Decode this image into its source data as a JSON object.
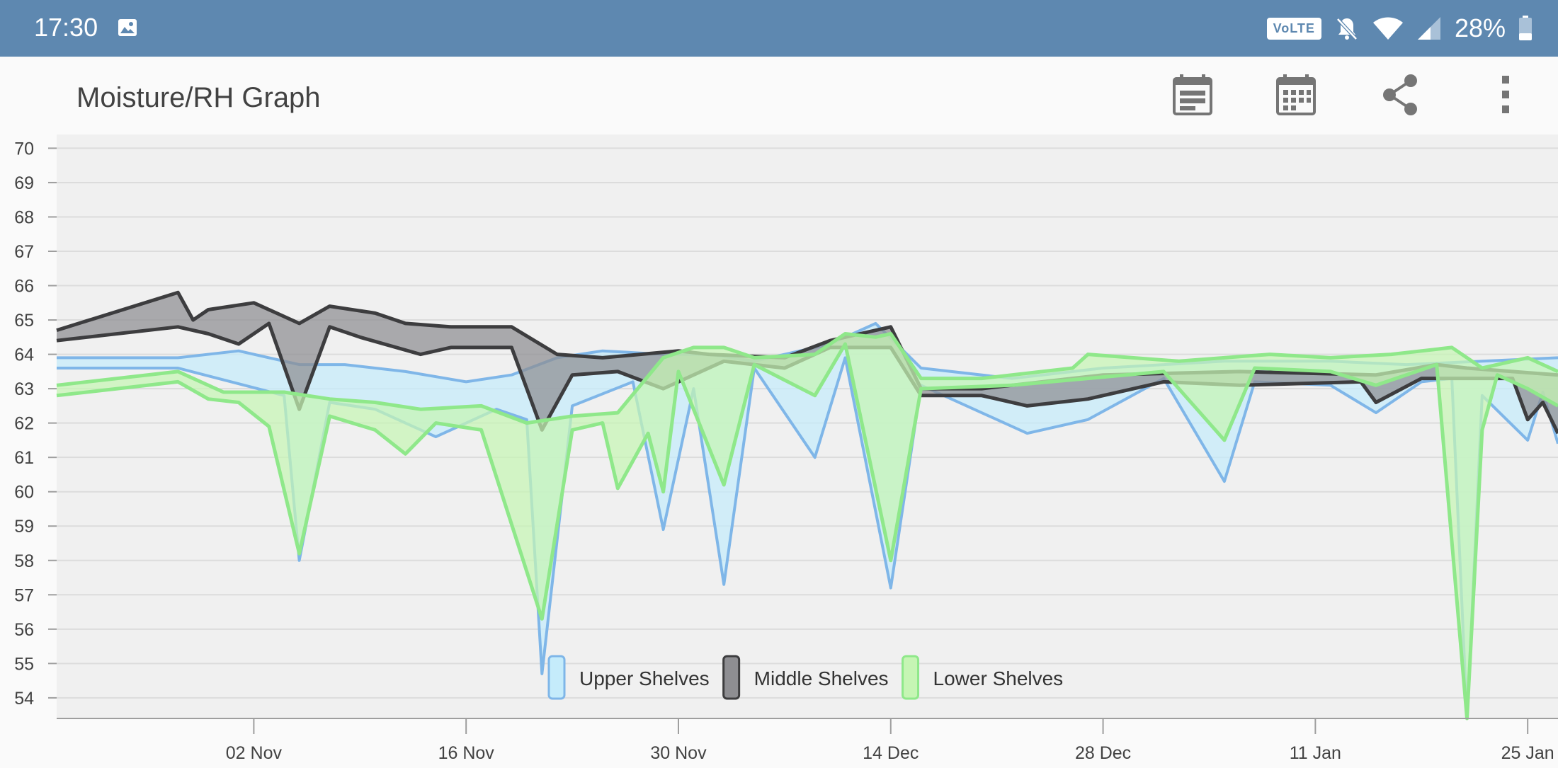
{
  "status_bar": {
    "time": "17:30",
    "volte_label": "VoLTE",
    "battery": "28%",
    "icons": [
      "image-icon",
      "volte-badge",
      "mute-bell-icon",
      "wifi-icon",
      "signal-icon",
      "battery-icon"
    ]
  },
  "app_bar": {
    "title": "Moisture/RH Graph",
    "actions": [
      "calendar-range-icon",
      "calendar-icon",
      "share-icon",
      "overflow-menu-icon"
    ]
  },
  "colors": {
    "status_bar": "#5e88b0",
    "plot_bg": "#f0f0f0",
    "upper": "#7fb6e8",
    "upper_fill": "#c5ecfb",
    "middle": "#3d3d3f",
    "middle_fill": "#8e8e92",
    "lower": "#8fe88a",
    "lower_fill": "#c6f5b4"
  },
  "chart_data": {
    "type": "area",
    "title": "",
    "xlabel": "",
    "ylabel": "",
    "ylim": [
      53.4,
      70.4
    ],
    "yticks": [
      54,
      55,
      56,
      57,
      58,
      59,
      60,
      61,
      62,
      63,
      64,
      65,
      66,
      67,
      68,
      69,
      70
    ],
    "xlim": [
      "2023-10-20",
      "2024-01-27"
    ],
    "xticks": [
      {
        "date": "2023-11-02",
        "label": "02 Nov"
      },
      {
        "date": "2023-11-16",
        "label": "16 Nov"
      },
      {
        "date": "2023-11-30",
        "label": "30 Nov"
      },
      {
        "date": "2023-12-14",
        "label": "14 Dec"
      },
      {
        "date": "2023-12-28",
        "label": "28 Dec"
      },
      {
        "date": "2024-01-11",
        "label": "11 Jan"
      },
      {
        "date": "2024-01-25",
        "label": "25 Jan"
      }
    ],
    "legend_position": "bottom-center",
    "grid": true,
    "series": [
      {
        "name": "Upper Shelves",
        "high": [
          [
            "2023-10-20",
            63.9
          ],
          [
            "2023-10-28",
            63.9
          ],
          [
            "2023-11-01",
            64.1
          ],
          [
            "2023-11-05",
            63.7
          ],
          [
            "2023-11-08",
            63.7
          ],
          [
            "2023-11-12",
            63.5
          ],
          [
            "2023-11-16",
            63.2
          ],
          [
            "2023-11-19",
            63.4
          ],
          [
            "2023-11-22",
            63.9
          ],
          [
            "2023-11-25",
            64.1
          ],
          [
            "2023-11-29",
            64.0
          ],
          [
            "2023-12-02",
            64.0
          ],
          [
            "2023-12-05",
            63.8
          ],
          [
            "2023-12-10",
            64.3
          ],
          [
            "2023-12-13",
            64.9
          ],
          [
            "2023-12-16",
            63.6
          ],
          [
            "2023-12-22",
            63.3
          ],
          [
            "2023-12-28",
            63.6
          ],
          [
            "2024-01-05",
            63.8
          ],
          [
            "2024-01-12",
            63.8
          ],
          [
            "2024-01-17",
            63.7
          ],
          [
            "2024-01-22",
            63.8
          ],
          [
            "2024-01-27",
            63.9
          ]
        ],
        "low": [
          [
            "2023-10-20",
            63.6
          ],
          [
            "2023-10-28",
            63.6
          ],
          [
            "2023-11-04",
            62.8
          ],
          [
            "2023-11-05",
            58.0
          ],
          [
            "2023-11-07",
            62.6
          ],
          [
            "2023-11-10",
            62.4
          ],
          [
            "2023-11-14",
            61.6
          ],
          [
            "2023-11-18",
            62.4
          ],
          [
            "2023-11-20",
            62.1
          ],
          [
            "2023-11-21",
            54.7
          ],
          [
            "2023-11-23",
            62.5
          ],
          [
            "2023-11-27",
            63.2
          ],
          [
            "2023-11-29",
            58.9
          ],
          [
            "2023-12-01",
            63.0
          ],
          [
            "2023-12-03",
            57.3
          ],
          [
            "2023-12-05",
            63.6
          ],
          [
            "2023-12-09",
            61.0
          ],
          [
            "2023-12-11",
            63.9
          ],
          [
            "2023-12-14",
            57.2
          ],
          [
            "2023-12-16",
            63.1
          ],
          [
            "2023-12-23",
            61.7
          ],
          [
            "2023-12-27",
            62.1
          ],
          [
            "2024-01-01",
            63.3
          ],
          [
            "2024-01-05",
            60.3
          ],
          [
            "2024-01-07",
            63.2
          ],
          [
            "2024-01-12",
            63.1
          ],
          [
            "2024-01-15",
            62.3
          ],
          [
            "2024-01-18",
            63.2
          ],
          [
            "2024-01-20",
            63.3
          ],
          [
            "2024-01-21",
            53.4
          ],
          [
            "2024-01-22",
            62.8
          ],
          [
            "2024-01-25",
            61.5
          ],
          [
            "2024-01-26",
            62.9
          ],
          [
            "2024-01-27",
            61.4
          ]
        ]
      },
      {
        "name": "Middle Shelves",
        "high": [
          [
            "2023-10-20",
            64.7
          ],
          [
            "2023-10-28",
            65.8
          ],
          [
            "2023-10-29",
            65.0
          ],
          [
            "2023-10-30",
            65.3
          ],
          [
            "2023-11-02",
            65.5
          ],
          [
            "2023-11-05",
            64.9
          ],
          [
            "2023-11-07",
            65.4
          ],
          [
            "2023-11-10",
            65.2
          ],
          [
            "2023-11-12",
            64.9
          ],
          [
            "2023-11-15",
            64.8
          ],
          [
            "2023-11-19",
            64.8
          ],
          [
            "2023-11-22",
            64.0
          ],
          [
            "2023-11-25",
            63.9
          ],
          [
            "2023-11-30",
            64.1
          ],
          [
            "2023-12-02",
            64.0
          ],
          [
            "2023-12-07",
            63.9
          ],
          [
            "2023-12-10",
            64.4
          ],
          [
            "2023-12-14",
            64.8
          ],
          [
            "2023-12-16",
            63.0
          ],
          [
            "2023-12-20",
            63.0
          ],
          [
            "2023-12-28",
            63.4
          ],
          [
            "2024-01-06",
            63.5
          ],
          [
            "2024-01-15",
            63.4
          ],
          [
            "2024-01-19",
            63.7
          ],
          [
            "2024-01-21",
            63.6
          ],
          [
            "2024-01-24",
            63.5
          ],
          [
            "2024-01-27",
            63.4
          ]
        ],
        "low": [
          [
            "2023-10-20",
            64.4
          ],
          [
            "2023-10-28",
            64.8
          ],
          [
            "2023-10-30",
            64.6
          ],
          [
            "2023-11-01",
            64.3
          ],
          [
            "2023-11-03",
            64.9
          ],
          [
            "2023-11-05",
            62.4
          ],
          [
            "2023-11-07",
            64.8
          ],
          [
            "2023-11-09",
            64.5
          ],
          [
            "2023-11-13",
            64.0
          ],
          [
            "2023-11-15",
            64.2
          ],
          [
            "2023-11-19",
            64.2
          ],
          [
            "2023-11-21",
            61.8
          ],
          [
            "2023-11-23",
            63.4
          ],
          [
            "2023-11-26",
            63.5
          ],
          [
            "2023-11-29",
            63.0
          ],
          [
            "2023-12-03",
            63.8
          ],
          [
            "2023-12-07",
            63.6
          ],
          [
            "2023-12-10",
            64.2
          ],
          [
            "2023-12-14",
            64.2
          ],
          [
            "2023-12-16",
            62.8
          ],
          [
            "2023-12-20",
            62.8
          ],
          [
            "2023-12-23",
            62.5
          ],
          [
            "2023-12-27",
            62.7
          ],
          [
            "2024-01-01",
            63.2
          ],
          [
            "2024-01-06",
            63.1
          ],
          [
            "2024-01-14",
            63.2
          ],
          [
            "2024-01-15",
            62.6
          ],
          [
            "2024-01-18",
            63.3
          ],
          [
            "2024-01-21",
            63.3
          ],
          [
            "2024-01-24",
            63.3
          ],
          [
            "2024-01-25",
            62.1
          ],
          [
            "2024-01-26",
            62.6
          ],
          [
            "2024-01-27",
            61.7
          ]
        ]
      },
      {
        "name": "Lower Shelves",
        "high": [
          [
            "2023-10-20",
            63.1
          ],
          [
            "2023-10-28",
            63.5
          ],
          [
            "2023-10-31",
            62.9
          ],
          [
            "2023-11-04",
            62.9
          ],
          [
            "2023-11-07",
            62.7
          ],
          [
            "2023-11-10",
            62.6
          ],
          [
            "2023-11-13",
            62.4
          ],
          [
            "2023-11-17",
            62.5
          ],
          [
            "2023-11-20",
            62.0
          ],
          [
            "2023-11-23",
            62.2
          ],
          [
            "2023-11-26",
            62.3
          ],
          [
            "2023-11-29",
            63.9
          ],
          [
            "2023-12-01",
            64.2
          ],
          [
            "2023-12-03",
            64.2
          ],
          [
            "2023-12-05",
            63.9
          ],
          [
            "2023-12-09",
            64.0
          ],
          [
            "2023-12-11",
            64.6
          ],
          [
            "2023-12-13",
            64.5
          ],
          [
            "2023-12-14",
            64.6
          ],
          [
            "2023-12-16",
            63.3
          ],
          [
            "2023-12-20",
            63.3
          ],
          [
            "2023-12-26",
            63.6
          ],
          [
            "2023-12-27",
            64.0
          ],
          [
            "2024-01-02",
            63.8
          ],
          [
            "2024-01-05",
            63.9
          ],
          [
            "2024-01-08",
            64.0
          ],
          [
            "2024-01-12",
            63.9
          ],
          [
            "2024-01-16",
            64.0
          ],
          [
            "2024-01-20",
            64.2
          ],
          [
            "2024-01-22",
            63.6
          ],
          [
            "2024-01-25",
            63.9
          ],
          [
            "2024-01-27",
            63.5
          ]
        ],
        "low": [
          [
            "2023-10-20",
            62.8
          ],
          [
            "2023-10-28",
            63.2
          ],
          [
            "2023-10-30",
            62.7
          ],
          [
            "2023-11-01",
            62.6
          ],
          [
            "2023-11-03",
            61.9
          ],
          [
            "2023-11-05",
            58.2
          ],
          [
            "2023-11-07",
            62.2
          ],
          [
            "2023-11-10",
            61.8
          ],
          [
            "2023-11-12",
            61.1
          ],
          [
            "2023-11-14",
            62.0
          ],
          [
            "2023-11-17",
            61.8
          ],
          [
            "2023-11-21",
            56.3
          ],
          [
            "2023-11-23",
            61.8
          ],
          [
            "2023-11-25",
            62.0
          ],
          [
            "2023-11-26",
            60.1
          ],
          [
            "2023-11-28",
            61.7
          ],
          [
            "2023-11-29",
            60.0
          ],
          [
            "2023-11-30",
            63.5
          ],
          [
            "2023-12-03",
            60.2
          ],
          [
            "2023-12-05",
            63.7
          ],
          [
            "2023-12-09",
            62.8
          ],
          [
            "2023-12-11",
            64.3
          ],
          [
            "2023-12-14",
            58.0
          ],
          [
            "2023-12-16",
            63.0
          ],
          [
            "2023-12-22",
            63.1
          ],
          [
            "2023-12-27",
            63.3
          ],
          [
            "2024-01-01",
            63.5
          ],
          [
            "2024-01-05",
            61.5
          ],
          [
            "2024-01-07",
            63.6
          ],
          [
            "2024-01-12",
            63.5
          ],
          [
            "2024-01-15",
            63.1
          ],
          [
            "2024-01-19",
            63.7
          ],
          [
            "2024-01-21",
            53.4
          ],
          [
            "2024-01-22",
            61.8
          ],
          [
            "2024-01-23",
            63.4
          ],
          [
            "2024-01-25",
            63.0
          ],
          [
            "2024-01-27",
            62.5
          ]
        ]
      }
    ]
  }
}
